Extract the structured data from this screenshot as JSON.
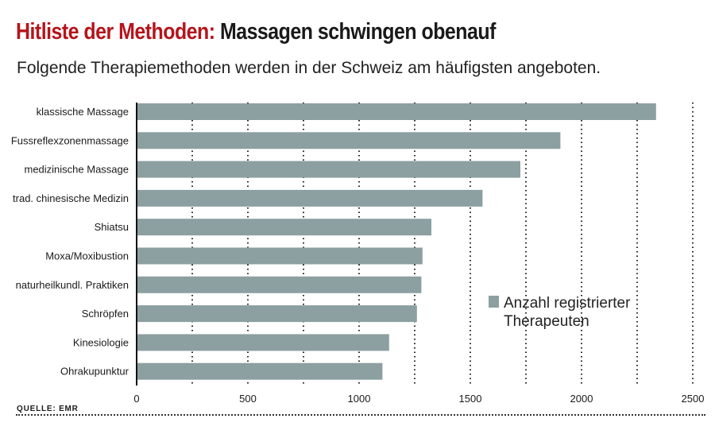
{
  "header": {
    "title_red": "Hitliste der Methoden:",
    "title_dark": "Massagen schwingen obenauf",
    "subtitle": "Folgende Therapiemethoden werden in der Schweiz am häufigsten angeboten."
  },
  "source": "QUELLE: EMR",
  "colors": {
    "bar": "#8c9fa1",
    "title_accent": "#b5141c",
    "text": "#1a1a1a"
  },
  "chart_data": {
    "type": "bar",
    "orientation": "horizontal",
    "categories": [
      "klassische Massage",
      "Fussreflexzonenmassage",
      "medizinische Massage",
      "trad. chinesische Medizin",
      "Shiatsu",
      "Moxa/Moxibustion",
      "naturheilkundl. Praktiken",
      "Schröpfen",
      "Kinesiologie",
      "Ohrakupunktur"
    ],
    "series": [
      {
        "name": "Anzahl registrierter Therapeuten",
        "values": [
          2335,
          1905,
          1725,
          1555,
          1325,
          1285,
          1280,
          1260,
          1135,
          1105
        ]
      }
    ],
    "xlim": [
      0,
      2500
    ],
    "xticks": [
      0,
      500,
      1000,
      1500,
      2000,
      2500
    ],
    "legend": {
      "lines": [
        "Anzahl registrierter",
        "Therapeuten"
      ],
      "position": "right"
    },
    "grid": "vertical dotted"
  }
}
